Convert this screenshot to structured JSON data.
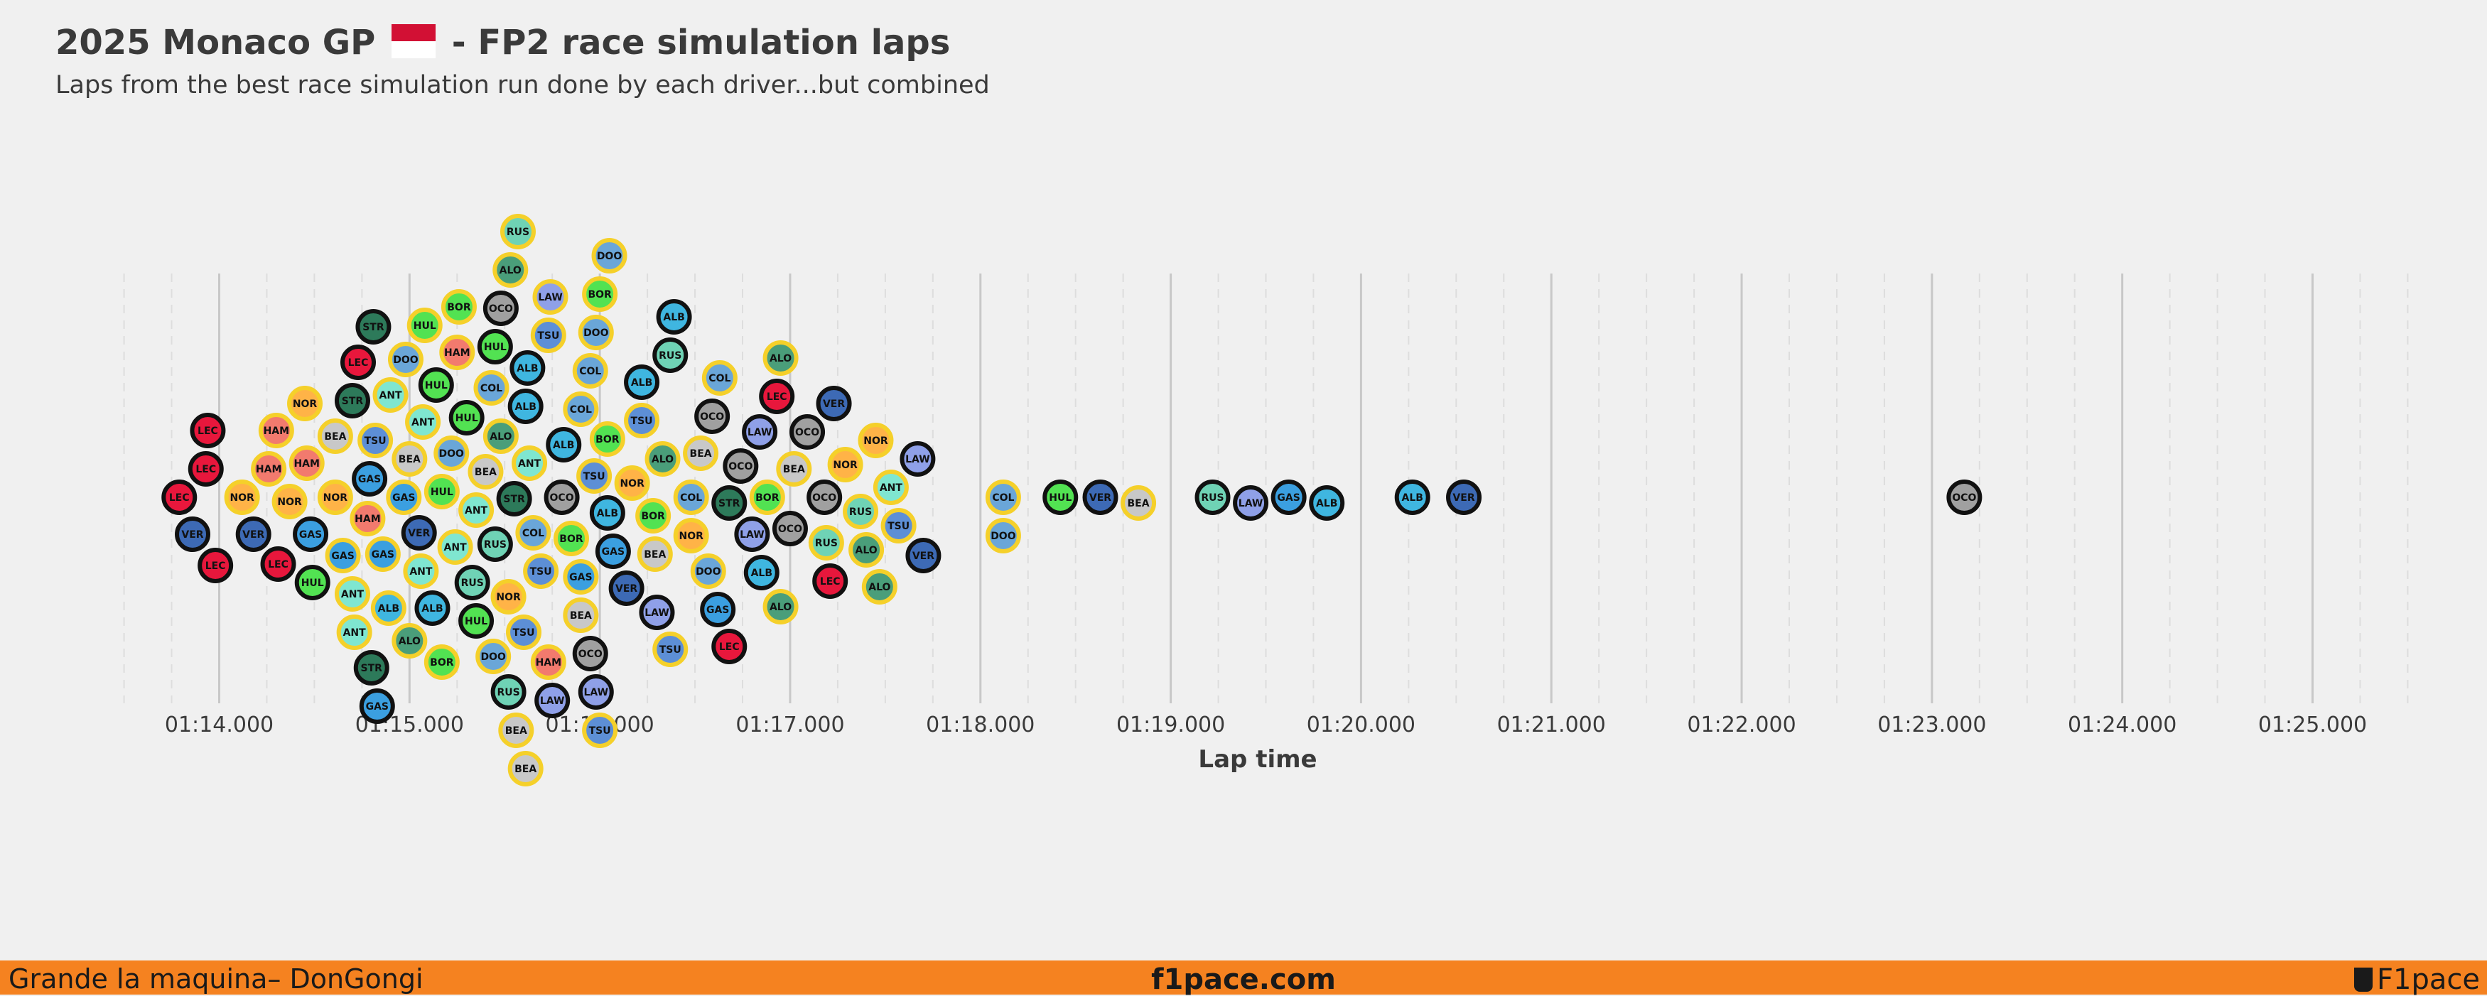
{
  "header": {
    "title_part1": "2025 Monaco GP",
    "title_part2": "- FP2 race simulation laps",
    "subtitle": "Laps from the best race simulation run done by each driver...but combined"
  },
  "footer": {
    "left": "Grande la maquina– DonGongi",
    "center": "f1pace.com",
    "right": "F1pace"
  },
  "colors": {
    "LEC": "#e8173c",
    "HAM": "#f27a6e",
    "VER": "#3d6ab5",
    "TSU": "#5d8fd6",
    "NOR": "#ffb347",
    "BOR": "#52e252",
    "HUL": "#52e252",
    "RUS": "#6fd3b5",
    "ANT": "#7fe6d0",
    "ALO": "#4a9e7a",
    "STR": "#2d7a5a",
    "ALB": "#3fb6e0",
    "COL": "#6aa6d8",
    "GAS": "#3b9fe0",
    "DOO": "#6aa6d8",
    "LAW": "#8fa0e8",
    "OCO": "#a0a0a0",
    "BEA": "#c8c8c8",
    "tyre_hard_ring": "#111111",
    "tyre_medium_ring": "#f5d02a",
    "background": "#f0f0f0",
    "footer": "#f58220"
  },
  "chart_data": {
    "type": "scatter",
    "subtype": "beeswarm",
    "xlabel": "Lap time",
    "xlim": [
      73.27,
      85.73
    ],
    "tick_labels": [
      "01:14.000",
      "01:15.000",
      "01:16.000",
      "01:17.000",
      "01:18.000",
      "01:19.000",
      "01:20.000",
      "01:21.000",
      "01:22.000",
      "01:23.000",
      "01:24.000",
      "01:25.000"
    ],
    "tick_values": [
      74,
      75,
      76,
      77,
      78,
      79,
      80,
      81,
      82,
      83,
      84,
      85
    ],
    "grid": true,
    "ring_key": {
      "hard": "black ring",
      "medium": "yellow ring"
    },
    "points": [
      {
        "d": "LEC",
        "t": 73.98,
        "r": "hard"
      },
      {
        "d": "LEC",
        "t": 73.79,
        "r": "hard"
      },
      {
        "d": "LEC",
        "t": 73.93,
        "r": "hard"
      },
      {
        "d": "LEC",
        "t": 73.94,
        "r": "hard"
      },
      {
        "d": "VER",
        "t": 73.86,
        "r": "hard"
      },
      {
        "d": "VER",
        "t": 74.18,
        "r": "hard"
      },
      {
        "d": "NOR",
        "t": 74.12,
        "r": "medium"
      },
      {
        "d": "LEC",
        "t": 74.31,
        "r": "hard"
      },
      {
        "d": "HAM",
        "t": 74.26,
        "r": "medium"
      },
      {
        "d": "HAM",
        "t": 74.3,
        "r": "medium"
      },
      {
        "d": "NOR",
        "t": 74.45,
        "r": "medium"
      },
      {
        "d": "NOR",
        "t": 74.37,
        "r": "medium"
      },
      {
        "d": "GAS",
        "t": 74.48,
        "r": "hard"
      },
      {
        "d": "HUL",
        "t": 74.49,
        "r": "hard"
      },
      {
        "d": "HAM",
        "t": 74.46,
        "r": "medium"
      },
      {
        "d": "NOR",
        "t": 74.61,
        "r": "medium"
      },
      {
        "d": "BEA",
        "t": 74.61,
        "r": "medium"
      },
      {
        "d": "ANT",
        "t": 74.7,
        "r": "medium"
      },
      {
        "d": "ANT",
        "t": 74.71,
        "r": "medium"
      },
      {
        "d": "GAS",
        "t": 74.65,
        "r": "medium"
      },
      {
        "d": "STR",
        "t": 74.7,
        "r": "hard"
      },
      {
        "d": "HAM",
        "t": 74.78,
        "r": "medium"
      },
      {
        "d": "STR",
        "t": 74.8,
        "r": "hard"
      },
      {
        "d": "GAS",
        "t": 74.83,
        "r": "hard"
      },
      {
        "d": "GAS",
        "t": 74.79,
        "r": "hard"
      },
      {
        "d": "LEC",
        "t": 74.73,
        "r": "hard"
      },
      {
        "d": "GAS",
        "t": 74.86,
        "r": "medium"
      },
      {
        "d": "ALB",
        "t": 74.89,
        "r": "medium"
      },
      {
        "d": "TSU",
        "t": 74.82,
        "r": "medium"
      },
      {
        "d": "STR",
        "t": 74.81,
        "r": "hard"
      },
      {
        "d": "BEA",
        "t": 75.0,
        "r": "medium"
      },
      {
        "d": "ALO",
        "t": 75.0,
        "r": "medium"
      },
      {
        "d": "VER",
        "t": 75.05,
        "r": "hard"
      },
      {
        "d": "GAS",
        "t": 74.97,
        "r": "medium"
      },
      {
        "d": "ANT",
        "t": 75.06,
        "r": "medium"
      },
      {
        "d": "ALB",
        "t": 75.12,
        "r": "hard"
      },
      {
        "d": "ANT",
        "t": 74.9,
        "r": "medium"
      },
      {
        "d": "HAM",
        "t": 75.25,
        "r": "medium"
      },
      {
        "d": "HUL",
        "t": 75.08,
        "r": "medium"
      },
      {
        "d": "HUL",
        "t": 75.17,
        "r": "medium"
      },
      {
        "d": "HUL",
        "t": 75.14,
        "r": "hard"
      },
      {
        "d": "DOO",
        "t": 75.22,
        "r": "medium"
      },
      {
        "d": "DOO",
        "t": 74.98,
        "r": "medium"
      },
      {
        "d": "BOR",
        "t": 75.17,
        "r": "medium"
      },
      {
        "d": "BOR",
        "t": 75.26,
        "r": "medium"
      },
      {
        "d": "RUS",
        "t": 75.33,
        "r": "hard"
      },
      {
        "d": "ANT",
        "t": 75.35,
        "r": "medium"
      },
      {
        "d": "ANT",
        "t": 75.24,
        "r": "medium"
      },
      {
        "d": "RUS",
        "t": 75.45,
        "r": "hard"
      },
      {
        "d": "DOO",
        "t": 75.44,
        "r": "medium"
      },
      {
        "d": "HUL",
        "t": 75.3,
        "r": "hard"
      },
      {
        "d": "BEA",
        "t": 75.4,
        "r": "medium"
      },
      {
        "d": "ALO",
        "t": 75.48,
        "r": "medium"
      },
      {
        "d": "COL",
        "t": 75.43,
        "r": "medium"
      },
      {
        "d": "STR",
        "t": 75.55,
        "r": "hard"
      },
      {
        "d": "NOR",
        "t": 75.52,
        "r": "medium"
      },
      {
        "d": "ALB",
        "t": 75.62,
        "r": "hard"
      },
      {
        "d": "RUS",
        "t": 75.57,
        "r": "medium"
      },
      {
        "d": "LAW",
        "t": 75.74,
        "r": "medium"
      },
      {
        "d": "OCO",
        "t": 75.8,
        "r": "hard"
      },
      {
        "d": "GAS",
        "t": 75.9,
        "r": "medium"
      },
      {
        "d": "ALB",
        "t": 75.61,
        "r": "hard"
      },
      {
        "d": "LAW",
        "t": 75.75,
        "r": "hard"
      },
      {
        "d": "TSU",
        "t": 75.97,
        "r": "medium"
      },
      {
        "d": "BEA",
        "t": 75.61,
        "r": "medium"
      },
      {
        "d": "BOR",
        "t": 75.85,
        "r": "medium"
      },
      {
        "d": "DOO",
        "t": 76.05,
        "r": "medium"
      },
      {
        "d": "ALO",
        "t": 75.53,
        "r": "medium"
      },
      {
        "d": "TSU",
        "t": 75.73,
        "r": "medium"
      },
      {
        "d": "ANT",
        "t": 75.63,
        "r": "medium"
      },
      {
        "d": "ALB",
        "t": 75.81,
        "r": "hard"
      },
      {
        "d": "COL",
        "t": 75.95,
        "r": "medium"
      },
      {
        "d": "OCO",
        "t": 75.95,
        "r": "hard"
      },
      {
        "d": "VER",
        "t": 76.14,
        "r": "hard"
      },
      {
        "d": "HUL",
        "t": 75.35,
        "r": "hard"
      },
      {
        "d": "BEA",
        "t": 75.56,
        "r": "medium"
      },
      {
        "d": "OCO",
        "t": 75.48,
        "r": "hard"
      },
      {
        "d": "TSU",
        "t": 75.69,
        "r": "medium"
      },
      {
        "d": "COL",
        "t": 75.9,
        "r": "medium"
      },
      {
        "d": "DOO",
        "t": 75.98,
        "r": "medium"
      },
      {
        "d": "ANT",
        "t": 75.07,
        "r": "medium"
      },
      {
        "d": "TSU",
        "t": 75.6,
        "r": "medium"
      },
      {
        "d": "ALB",
        "t": 76.04,
        "r": "hard"
      },
      {
        "d": "HAM",
        "t": 75.73,
        "r": "medium"
      },
      {
        "d": "COL",
        "t": 75.65,
        "r": "medium"
      },
      {
        "d": "HUL",
        "t": 75.45,
        "r": "hard"
      },
      {
        "d": "BOR",
        "t": 76.0,
        "r": "medium"
      },
      {
        "d": "NOR",
        "t": 76.17,
        "r": "medium"
      },
      {
        "d": "RUS",
        "t": 76.37,
        "r": "hard"
      },
      {
        "d": "DOO",
        "t": 76.57,
        "r": "medium"
      },
      {
        "d": "TSU",
        "t": 76.22,
        "r": "medium"
      },
      {
        "d": "ALO",
        "t": 76.33,
        "r": "medium"
      },
      {
        "d": "BEA",
        "t": 76.53,
        "r": "medium"
      },
      {
        "d": "LAW",
        "t": 76.8,
        "r": "hard"
      },
      {
        "d": "LEC",
        "t": 76.93,
        "r": "hard"
      },
      {
        "d": "STR",
        "t": 76.68,
        "r": "hard"
      },
      {
        "d": "ALO",
        "t": 76.95,
        "r": "medium"
      },
      {
        "d": "OCO",
        "t": 77.09,
        "r": "hard"
      },
      {
        "d": "NOR",
        "t": 77.29,
        "r": "medium"
      },
      {
        "d": "BEA",
        "t": 76.29,
        "r": "medium"
      },
      {
        "d": "COL",
        "t": 76.48,
        "r": "medium"
      },
      {
        "d": "OCO",
        "t": 76.74,
        "r": "hard"
      },
      {
        "d": "OCO",
        "t": 77.0,
        "r": "hard"
      },
      {
        "d": "RUS",
        "t": 77.19,
        "r": "medium"
      },
      {
        "d": "RUS",
        "t": 77.37,
        "r": "medium"
      },
      {
        "d": "ANT",
        "t": 77.53,
        "r": "medium"
      },
      {
        "d": "LAW",
        "t": 77.67,
        "r": "hard"
      },
      {
        "d": "VER",
        "t": 77.23,
        "r": "hard"
      },
      {
        "d": "ALO",
        "t": 77.47,
        "r": "medium"
      },
      {
        "d": "VER",
        "t": 77.7,
        "r": "hard"
      },
      {
        "d": "OCO",
        "t": 76.59,
        "r": "hard"
      },
      {
        "d": "ALO",
        "t": 76.95,
        "r": "medium"
      },
      {
        "d": "BOR",
        "t": 76.88,
        "r": "medium"
      },
      {
        "d": "LEC",
        "t": 76.68,
        "r": "hard"
      },
      {
        "d": "NOR",
        "t": 76.48,
        "r": "medium"
      },
      {
        "d": "LAW",
        "t": 76.3,
        "r": "hard"
      },
      {
        "d": "ALB",
        "t": 76.22,
        "r": "hard"
      },
      {
        "d": "BOR",
        "t": 76.04,
        "r": "medium"
      },
      {
        "d": "ALO",
        "t": 77.4,
        "r": "medium"
      },
      {
        "d": "TSU",
        "t": 77.57,
        "r": "medium"
      },
      {
        "d": "OCO",
        "t": 77.18,
        "r": "hard"
      },
      {
        "d": "LEC",
        "t": 77.21,
        "r": "hard"
      },
      {
        "d": "NOR",
        "t": 77.45,
        "r": "medium"
      },
      {
        "d": "BEA",
        "t": 77.02,
        "r": "medium"
      },
      {
        "d": "LAW",
        "t": 76.84,
        "r": "hard"
      },
      {
        "d": "COL",
        "t": 76.63,
        "r": "medium"
      },
      {
        "d": "ALB",
        "t": 76.39,
        "r": "hard"
      },
      {
        "d": "TSU",
        "t": 76.0,
        "r": "medium"
      },
      {
        "d": "RUS",
        "t": 75.52,
        "r": "hard"
      },
      {
        "d": "GAS",
        "t": 76.07,
        "r": "hard"
      },
      {
        "d": "BOR",
        "t": 76.28,
        "r": "medium"
      },
      {
        "d": "GAS",
        "t": 76.62,
        "r": "hard"
      },
      {
        "d": "ALB",
        "t": 76.85,
        "r": "hard"
      },
      {
        "d": "LAW",
        "t": 75.98,
        "r": "hard"
      },
      {
        "d": "BEA",
        "t": 75.9,
        "r": "medium"
      },
      {
        "d": "TSU",
        "t": 76.37,
        "r": "medium"
      },
      {
        "d": "COL",
        "t": 78.12,
        "r": "medium"
      },
      {
        "d": "DOO",
        "t": 78.12,
        "r": "medium"
      },
      {
        "d": "HUL",
        "t": 78.42,
        "r": "hard"
      },
      {
        "d": "VER",
        "t": 78.63,
        "r": "hard"
      },
      {
        "d": "BEA",
        "t": 78.83,
        "r": "medium"
      },
      {
        "d": "RUS",
        "t": 79.22,
        "r": "hard"
      },
      {
        "d": "LAW",
        "t": 79.42,
        "r": "hard"
      },
      {
        "d": "GAS",
        "t": 79.62,
        "r": "hard"
      },
      {
        "d": "ALB",
        "t": 79.82,
        "r": "hard"
      },
      {
        "d": "ALB",
        "t": 80.27,
        "r": "hard"
      },
      {
        "d": "VER",
        "t": 80.54,
        "r": "hard"
      },
      {
        "d": "OCO",
        "t": 83.17,
        "r": "hard"
      }
    ]
  }
}
